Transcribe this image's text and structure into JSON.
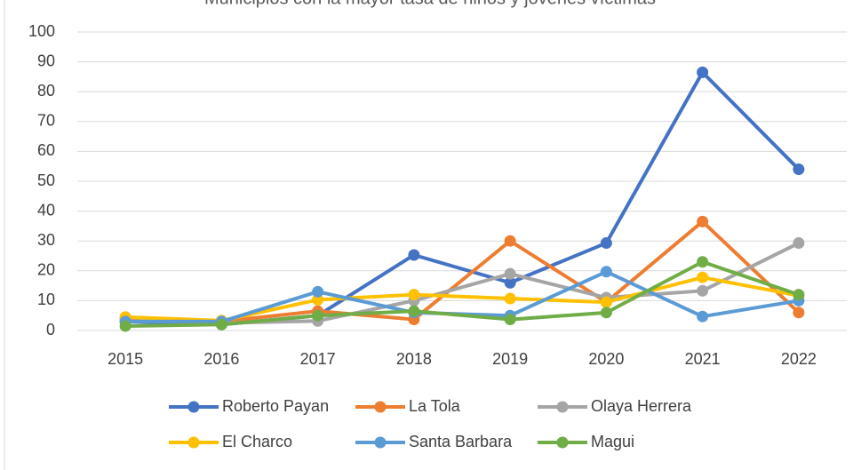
{
  "chart_data": {
    "type": "line",
    "title": "Municipios con la mayor tasa de niños y jóvenes víctimas",
    "x": [
      2015,
      2016,
      2017,
      2018,
      2019,
      2020,
      2021,
      2022
    ],
    "ylim": [
      0,
      100
    ],
    "yticks": [
      0,
      10,
      20,
      30,
      40,
      50,
      60,
      70,
      80,
      90,
      100
    ],
    "grid": true,
    "series": [
      {
        "name": "Roberto Payan",
        "color": "#4472c4",
        "values": [
          3,
          2,
          5,
          25.3,
          16,
          29.3,
          86.5,
          54
        ]
      },
      {
        "name": "La Tola",
        "color": "#ed7d31",
        "values": [
          4,
          3,
          6.5,
          3.7,
          30,
          9.5,
          36.5,
          6
        ]
      },
      {
        "name": "Olaya Herrera",
        "color": "#a5a5a5",
        "values": [
          4.5,
          2.5,
          3.2,
          10,
          19,
          11,
          13.3,
          29.3
        ]
      },
      {
        "name": "El Charco",
        "color": "#ffc000",
        "values": [
          4.5,
          3.3,
          10.3,
          12,
          10.7,
          9.5,
          17.8,
          11.7
        ]
      },
      {
        "name": "Santa Barbara",
        "color": "#5b9bd5",
        "values": [
          3,
          3,
          13,
          6,
          5,
          19.7,
          4.7,
          10
        ]
      },
      {
        "name": "Magui",
        "color": "#70ad47",
        "values": [
          1.5,
          2,
          5,
          6.5,
          3.7,
          6,
          23,
          12
        ]
      }
    ]
  }
}
